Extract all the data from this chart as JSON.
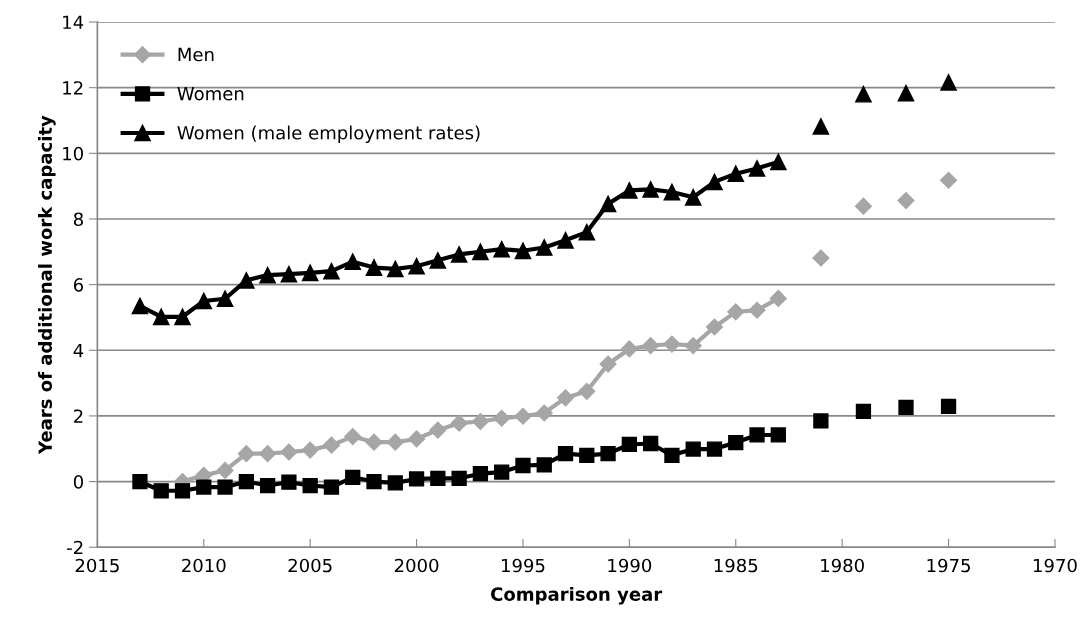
{
  "chart_data": {
    "type": "line",
    "xlabel": "Comparison year",
    "ylabel": "Years of additional work capacity",
    "x": [
      2013,
      2012,
      2011,
      2010,
      2009,
      2008,
      2007,
      2006,
      2005,
      2004,
      2003,
      2002,
      2001,
      2000,
      1999,
      1998,
      1997,
      1996,
      1995,
      1994,
      1993,
      1992,
      1991,
      1990,
      1989,
      1988,
      1987,
      1986,
      1985,
      1984,
      1983,
      1982,
      1981,
      1980,
      1979,
      1978,
      1977,
      1976,
      1975
    ],
    "series": [
      {
        "name": "Men",
        "color": "#a6a6a6",
        "marker": "diamond",
        "values": [
          null,
          null,
          0.0,
          0.19,
          0.34,
          0.85,
          0.85,
          0.9,
          0.96,
          1.11,
          1.37,
          1.2,
          1.2,
          1.3,
          1.57,
          1.78,
          1.83,
          1.93,
          1.99,
          2.09,
          2.55,
          2.75,
          3.58,
          4.04,
          4.14,
          4.19,
          4.14,
          4.71,
          5.17,
          5.22,
          5.58,
          null,
          6.81,
          null,
          8.39,
          null,
          8.56,
          null,
          9.18
        ]
      },
      {
        "name": "Women",
        "color": "#000000",
        "marker": "square",
        "values": [
          0.0,
          -0.28,
          -0.28,
          -0.17,
          -0.17,
          0.0,
          -0.12,
          -0.02,
          -0.12,
          -0.17,
          0.13,
          0.0,
          -0.04,
          0.08,
          0.1,
          0.1,
          0.24,
          0.29,
          0.49,
          0.51,
          0.85,
          0.8,
          0.85,
          1.13,
          1.16,
          0.8,
          0.99,
          0.99,
          1.19,
          1.42,
          1.42,
          null,
          1.85,
          null,
          2.14,
          null,
          2.26,
          null,
          2.29
        ]
      },
      {
        "name": "Women (male employment rates)",
        "color": "#000000",
        "marker": "triangle",
        "values": [
          5.35,
          5.02,
          5.02,
          5.5,
          5.57,
          6.13,
          6.29,
          6.32,
          6.36,
          6.41,
          6.7,
          6.52,
          6.48,
          6.56,
          6.74,
          6.92,
          7.0,
          7.08,
          7.03,
          7.13,
          7.35,
          7.6,
          8.46,
          8.87,
          8.9,
          8.82,
          8.66,
          9.13,
          9.38,
          9.54,
          9.74,
          null,
          10.82,
          null,
          11.8,
          null,
          11.83,
          null,
          12.16
        ]
      }
    ],
    "xlim": [
      2015,
      1970
    ],
    "xticks": [
      2015,
      2010,
      2005,
      2000,
      1995,
      1990,
      1985,
      1980,
      1975,
      1970
    ],
    "ylim": [
      -2,
      14
    ],
    "yticks": [
      -2,
      0,
      2,
      4,
      6,
      8,
      10,
      12,
      14
    ],
    "grid": "y",
    "legend": "top left",
    "line_style": "solid"
  }
}
